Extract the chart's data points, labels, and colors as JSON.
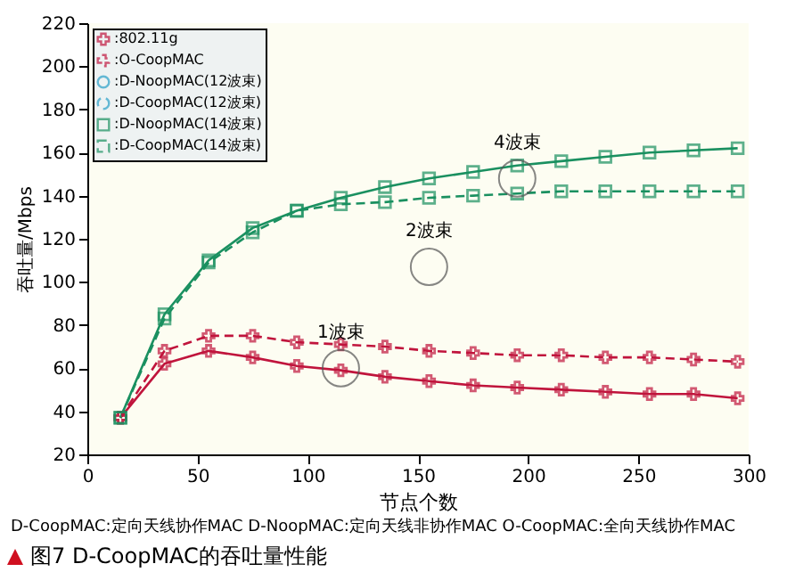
{
  "chart_data": {
    "type": "line",
    "title": "图7 D-CoopMAC的吞吐量性能",
    "xlabel": "节点个数",
    "ylabel": "吞吐量/Mbps",
    "x": [
      15,
      35,
      55,
      75,
      95,
      115,
      135,
      155,
      175,
      195,
      215,
      235,
      255,
      275,
      295
    ],
    "xlim": [
      0,
      300
    ],
    "xticks": [
      0,
      50,
      100,
      150,
      200,
      250,
      300
    ],
    "ylim": [
      20,
      220
    ],
    "yticks": [
      20,
      40,
      60,
      80,
      100,
      120,
      140,
      160,
      180,
      200,
      220
    ],
    "grid": false,
    "legend": "top left",
    "series": [
      {
        "name": ":802.11g",
        "color": "#c0143c",
        "marker": "cross",
        "line_style": "solid",
        "values": [
          37,
          62,
          68,
          65,
          61,
          59,
          56,
          54,
          52,
          51,
          50,
          49,
          48,
          48,
          46
        ]
      },
      {
        "name": ":O-CoopMAC",
        "color": "#c0143c",
        "marker": "cross",
        "line_style": "dashed",
        "values": [
          37,
          68,
          75,
          75,
          72,
          71,
          70,
          68,
          67,
          66,
          66,
          65,
          65,
          64,
          63
        ]
      },
      {
        "name": ":D-NoopMAC(12波束)",
        "color": "#2aa0c8",
        "marker": "circle",
        "line_style": "solid",
        "values": [
          null,
          null,
          null,
          null,
          null,
          null,
          null,
          null,
          null,
          null,
          null,
          null,
          null,
          null,
          null
        ]
      },
      {
        "name": ":D-CoopMAC(12波束)",
        "color": "#2aa0c8",
        "marker": "circle",
        "line_style": "dashed",
        "values": [
          null,
          null,
          null,
          null,
          null,
          null,
          null,
          null,
          null,
          null,
          null,
          null,
          null,
          null,
          null
        ]
      },
      {
        "name": ":D-NoopMAC(14波束)",
        "color": "#1a9060",
        "marker": "square",
        "line_style": "solid",
        "values": [
          37,
          85,
          110,
          125,
          133,
          139,
          144,
          148,
          151,
          154,
          156,
          158,
          160,
          161,
          162
        ]
      },
      {
        "name": ":D-CoopMAC(14波束)",
        "color": "#1a9060",
        "marker": "square",
        "line_style": "dashed",
        "values": [
          37,
          83,
          109,
          123,
          133,
          136,
          137,
          139,
          140,
          141,
          142,
          142,
          142,
          142,
          142
        ]
      }
    ],
    "annotations": [
      {
        "text": "1波束",
        "x": 115,
        "y": 60
      },
      {
        "text": "2波束",
        "x": 155,
        "y": 107
      },
      {
        "text": "4波束",
        "x": 195,
        "y": 148
      },
      "D-CoopMAC:定向天线协作MAC    D-NoopMAC:定向天线非协作MAC    O-CoopMAC:全向天线协作MAC"
    ]
  }
}
